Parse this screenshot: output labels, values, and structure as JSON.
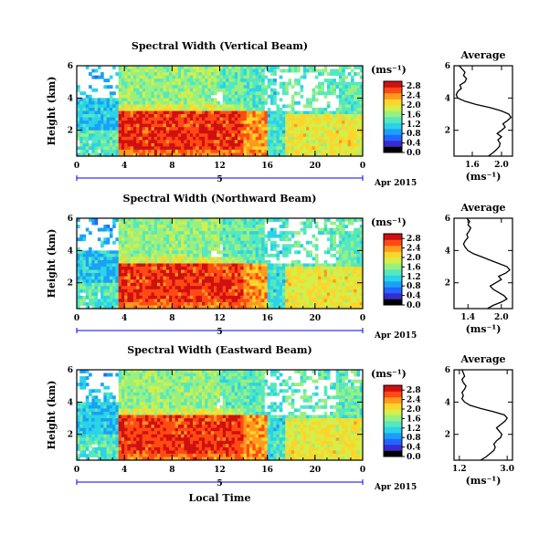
{
  "colors": {
    "colormap": [
      "#000000",
      "#3a2bd0",
      "#2266ff",
      "#1aa0f5",
      "#2ad3e8",
      "#55e8c0",
      "#99f080",
      "#d2ef4a",
      "#ffd52a",
      "#ff9a1e",
      "#ff4a14",
      "#d01010"
    ],
    "date_axis": "#0000ff",
    "missing": "#ffffff"
  },
  "chart_data": [
    {
      "type": "heatmap",
      "panel": "vertical",
      "title": "Spectral Width (Vertical Beam)",
      "ylabel": "Height (km)",
      "x_ticks": [
        "0",
        "4",
        "8",
        "12",
        "16",
        "20",
        "0"
      ],
      "xlim": [
        0,
        24
      ],
      "y_ticks": [
        "2",
        "4",
        "6"
      ],
      "ylim": [
        0.4,
        6
      ],
      "date_label": "5",
      "date_suffix": "Apr 2015",
      "colorbar": {
        "unit": "(ms⁻¹)",
        "ticks": [
          "0.0",
          "0.4",
          "0.8",
          "1.2",
          "1.6",
          "2.0",
          "2.4",
          "2.8"
        ],
        "range": [
          0,
          3.0
        ]
      },
      "average": {
        "title": "Average",
        "xlabel": "(ms⁻¹)",
        "x_ticks": [
          "1.6",
          "2.0"
        ],
        "xlim": [
          1.35,
          2.15
        ],
        "y_ticks": [
          "2",
          "4",
          "6"
        ],
        "ylim": [
          0.4,
          6
        ],
        "profile": {
          "height": [
            0.4,
            0.6,
            0.8,
            1.0,
            1.2,
            1.4,
            1.6,
            1.8,
            2.0,
            2.2,
            2.4,
            2.6,
            2.8,
            3.0,
            3.2,
            3.4,
            3.6,
            3.8,
            4.0,
            4.2,
            4.4,
            4.6,
            4.8,
            5.0,
            5.2,
            5.4,
            5.6,
            5.8,
            6.0
          ],
          "value": [
            1.82,
            1.88,
            1.93,
            1.97,
            1.98,
            1.95,
            2.0,
            1.94,
            2.0,
            2.05,
            2.02,
            2.08,
            2.13,
            2.1,
            2.0,
            1.85,
            1.65,
            1.5,
            1.4,
            1.38,
            1.4,
            1.45,
            1.43,
            1.5,
            1.52,
            1.48,
            1.5,
            1.46,
            1.42
          ]
        }
      }
    },
    {
      "type": "heatmap",
      "panel": "northward",
      "title": "Spectral Width (Northward Beam)",
      "ylabel": "Height (km)",
      "x_ticks": [
        "0",
        "4",
        "8",
        "12",
        "16",
        "20",
        "0"
      ],
      "xlim": [
        0,
        24
      ],
      "y_ticks": [
        "2",
        "4",
        "6"
      ],
      "ylim": [
        0.4,
        6
      ],
      "date_label": "5",
      "date_suffix": "Apr 2015",
      "colorbar": {
        "unit": "(ms⁻¹)",
        "ticks": [
          "0.0",
          "0.4",
          "0.8",
          "1.2",
          "1.6",
          "2.0",
          "2.4",
          "2.8"
        ],
        "range": [
          0,
          3.0
        ]
      },
      "average": {
        "title": "Average",
        "xlabel": "(ms⁻¹)",
        "x_ticks": [
          "1.4",
          "2.0"
        ],
        "xlim": [
          1.15,
          2.2
        ],
        "y_ticks": [
          "2",
          "4",
          "6"
        ],
        "ylim": [
          0.4,
          6
        ],
        "profile": {
          "height": [
            0.4,
            0.6,
            0.8,
            1.0,
            1.2,
            1.4,
            1.6,
            1.8,
            2.0,
            2.2,
            2.4,
            2.6,
            2.8,
            3.0,
            3.2,
            3.4,
            3.6,
            3.8,
            4.0,
            4.2,
            4.4,
            4.6,
            4.8,
            5.0,
            5.2,
            5.4,
            5.6,
            5.8,
            6.0
          ],
          "value": [
            1.75,
            1.85,
            2.0,
            2.1,
            2.05,
            1.95,
            1.85,
            1.8,
            1.9,
            2.0,
            1.95,
            2.08,
            2.15,
            2.1,
            1.95,
            1.8,
            1.65,
            1.5,
            1.4,
            1.35,
            1.32,
            1.35,
            1.4,
            1.38,
            1.42,
            1.45,
            1.4,
            1.43,
            1.38
          ]
        }
      }
    },
    {
      "type": "heatmap",
      "panel": "eastward",
      "title": "Spectral Width (Eastward Beam)",
      "ylabel": "Height (km)",
      "x_ticks": [
        "0",
        "4",
        "8",
        "12",
        "16",
        "20",
        "0"
      ],
      "xlim": [
        0,
        24
      ],
      "y_ticks": [
        "2",
        "4",
        "6"
      ],
      "ylim": [
        0.4,
        6
      ],
      "date_label": "5",
      "date_suffix": "Apr 2015",
      "xlabel": "Local Time",
      "colorbar": {
        "unit": "(ms⁻¹)",
        "ticks": [
          "0.0",
          "0.4",
          "0.8",
          "1.2",
          "1.6",
          "2.0",
          "2.4",
          "2.8"
        ],
        "range": [
          0,
          3.0
        ]
      },
      "average": {
        "title": "Average",
        "xlabel": "(ms⁻¹)",
        "x_ticks": [
          "1.2",
          "3.0"
        ],
        "xlim": [
          1.0,
          3.2
        ],
        "y_ticks": [
          "2",
          "4",
          "6"
        ],
        "ylim": [
          0.4,
          6
        ],
        "profile": {
          "height": [
            0.4,
            0.6,
            0.8,
            1.0,
            1.2,
            1.4,
            1.6,
            1.8,
            2.0,
            2.2,
            2.4,
            2.6,
            2.8,
            3.0,
            3.2,
            3.4,
            3.6,
            3.8,
            4.0,
            4.2,
            4.4,
            4.6,
            4.8,
            5.0,
            5.2,
            5.4,
            5.6,
            5.8,
            6.0
          ],
          "value": [
            2.0,
            2.2,
            2.35,
            2.5,
            2.55,
            2.5,
            2.6,
            2.75,
            2.8,
            2.7,
            2.6,
            2.75,
            2.9,
            3.0,
            2.9,
            2.5,
            2.0,
            1.6,
            1.4,
            1.3,
            1.35,
            1.3,
            1.4,
            1.45,
            1.35,
            1.3,
            1.4,
            1.35,
            1.3
          ]
        }
      }
    }
  ]
}
